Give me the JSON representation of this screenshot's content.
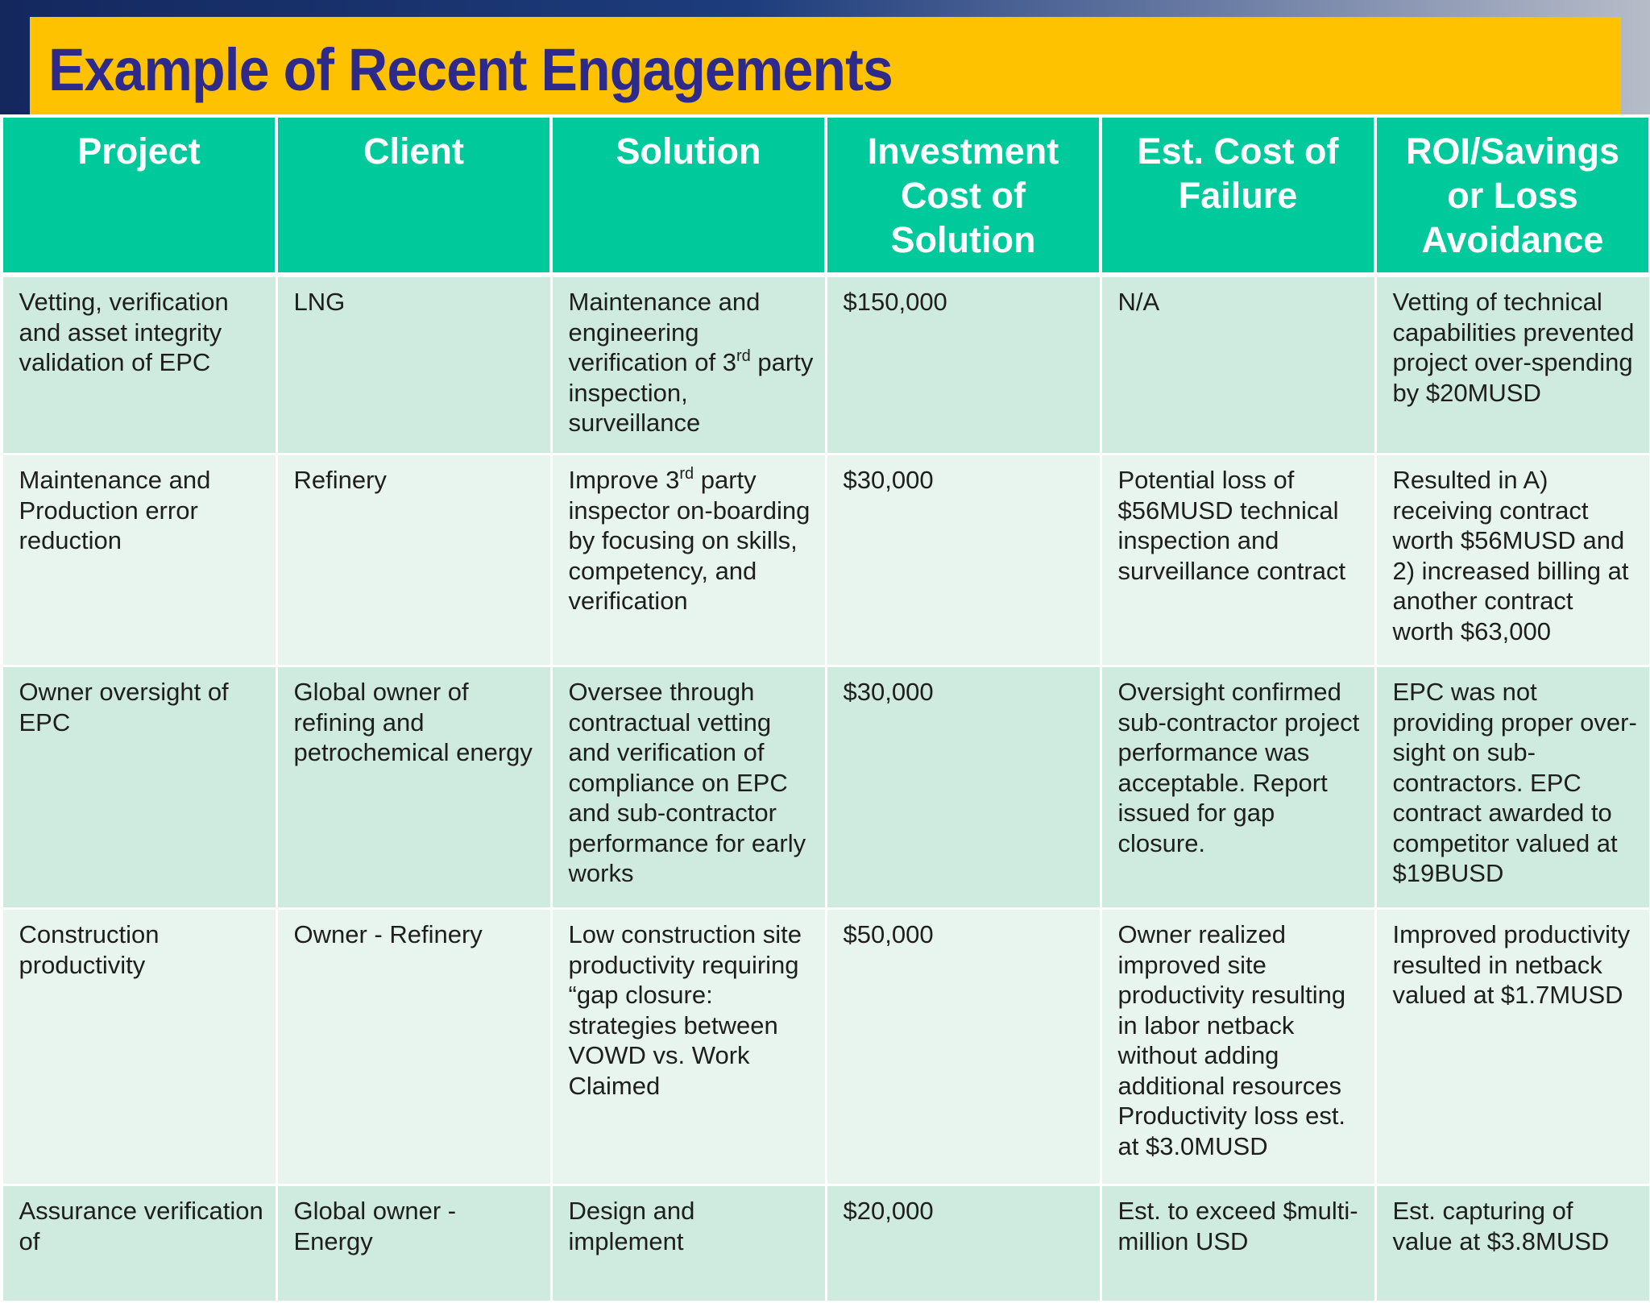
{
  "title": "Example of Recent Engagements",
  "colors": {
    "header_bg": "#00c99b",
    "title_bg": "#fec200",
    "title_text": "#2d2a8c",
    "row_dark": "#cfeadf",
    "row_light": "#e8f5ee"
  },
  "table": {
    "headers": [
      "Project",
      "Client",
      "Solution",
      "Investment Cost of Solution",
      "Est. Cost of Failure",
      "ROI/Savings or Loss Avoidance"
    ],
    "rows": [
      {
        "project": "Vetting, verification and asset integrity validation of EPC",
        "client": "LNG",
        "solution_pre": "Maintenance and engineering verification of 3",
        "solution_sup": "rd",
        "solution_post": " party inspection, surveillance",
        "investment": "$150,000",
        "cost_of_failure": "N/A",
        "roi": "Vetting of technical capabilities prevented project over-spending by $20MUSD"
      },
      {
        "project": "Maintenance and Production error reduction",
        "client": "Refinery",
        "solution_pre": "Improve 3",
        "solution_sup": "rd",
        "solution_post": " party inspector on-boarding by focusing on skills, competency, and verification",
        "investment": "$30,000",
        "cost_of_failure": "Potential loss of $56MUSD technical inspection and surveillance contract",
        "roi": "Resulted in A) receiving contract worth $56MUSD and 2) increased billing at another contract worth $63,000"
      },
      {
        "project": "Owner oversight of EPC",
        "client": "Global owner of refining and petrochemical energy",
        "solution": "Oversee through contractual vetting and verification of compliance  on EPC and sub-contractor performance for early works",
        "investment": "$30,000",
        "cost_of_failure": "Oversight confirmed sub-contractor project performance was acceptable. Report issued for gap closure.",
        "roi": "EPC was not providing proper over-sight on sub-contractors.  EPC contract awarded to competitor valued at $19BUSD"
      },
      {
        "project": "Construction productivity",
        "client": "Owner - Refinery",
        "solution": "Low construction site productivity requiring “gap closure: strategies between VOWD vs. Work Claimed",
        "investment": "$50,000",
        "cost_of_failure": "Owner realized improved site productivity resulting in labor netback without adding additional resources Productivity loss est. at $3.0MUSD",
        "roi": "Improved productivity resulted in netback valued at $1.7MUSD"
      },
      {
        "project": "Assurance verification of",
        "client": "Global owner - Energy",
        "solution": "Design and implement",
        "investment": "$20,000",
        "cost_of_failure": "Est. to exceed $multi-million USD",
        "roi": "Est. capturing of value at $3.8MUSD"
      }
    ]
  }
}
